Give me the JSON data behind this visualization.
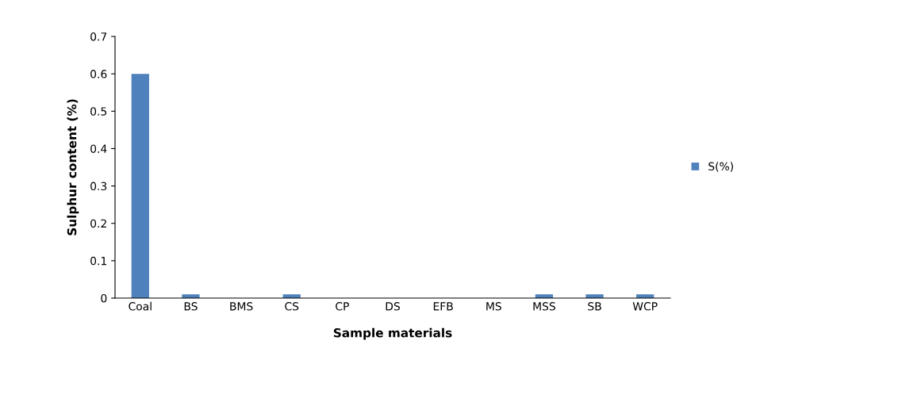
{
  "chart_data": {
    "type": "bar",
    "xlabel": "Sample materials",
    "ylabel": "Sulphur content (%)",
    "categories": [
      "Coal",
      "BS",
      "BMS",
      "CS",
      "CP",
      "DS",
      "EFB",
      "MS",
      "MSS",
      "SB",
      "WCP"
    ],
    "series": [
      {
        "name": "S(%)",
        "color": "#4f81bd",
        "values": [
          0.6,
          0.01,
          0,
          0.01,
          0,
          0,
          0,
          0,
          0.01,
          0.01,
          0.01
        ]
      }
    ],
    "ylim": [
      0,
      0.7
    ],
    "yticks": [
      0,
      0.1,
      0.2,
      0.3,
      0.4,
      0.5,
      0.6,
      0.7
    ],
    "grid": false,
    "legend": "right"
  }
}
